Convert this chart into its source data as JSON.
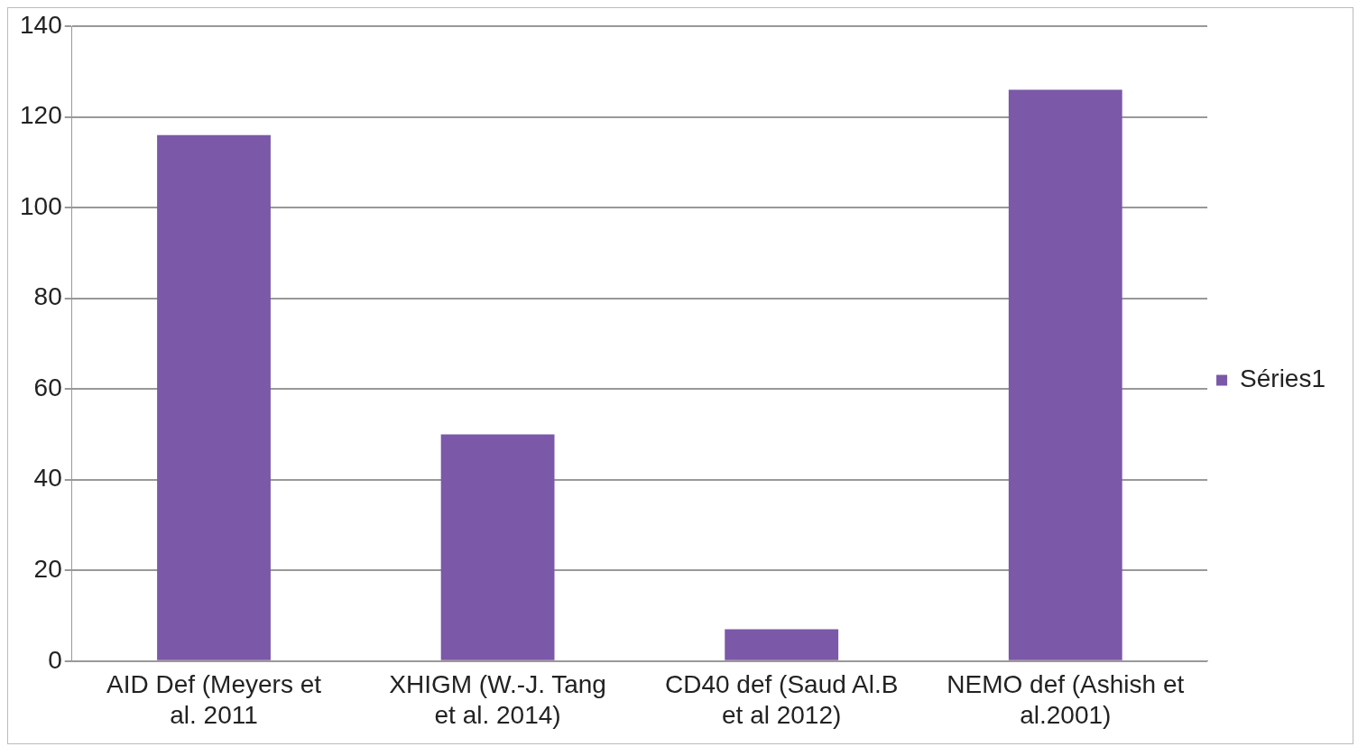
{
  "chart_data": {
    "type": "bar",
    "categories": [
      "AID Def (Meyers et al. 2011",
      "XHIGM (W.-J. Tang et al. 2014)",
      "CD40 def (Saud Al.B et al 2012)",
      "NEMO def (Ashish et al.2001)"
    ],
    "series": [
      {
        "name": "Séries1",
        "color": "#7b58a8",
        "values": [
          116,
          50,
          7,
          126
        ]
      }
    ],
    "ylim": [
      0,
      140
    ],
    "yticks": [
      0,
      20,
      40,
      60,
      80,
      100,
      120,
      140
    ],
    "grid": "y",
    "legend": "right"
  }
}
